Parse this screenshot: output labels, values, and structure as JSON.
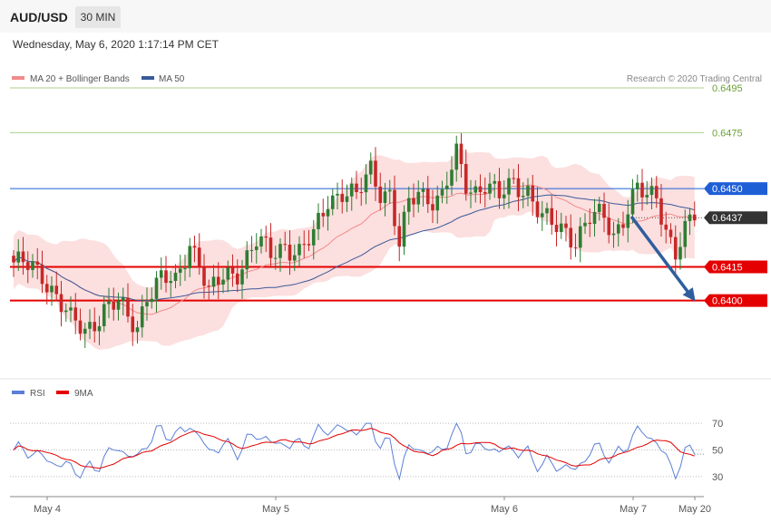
{
  "header": {
    "symbol": "AUD/USD",
    "timeframe": "30 MIN",
    "datetime": "Wednesday, May 6, 2020 1:17:14 PM CET"
  },
  "colors": {
    "bull": "#2e7d32",
    "bear": "#c62828",
    "band_fill": "#fbd4d4",
    "ma20": "#f28a8a",
    "ma50": "#3a5a9a",
    "support": "#e40000",
    "resistance_blue": "#1f5fd6",
    "target_green": "#a9d18e",
    "current_label": "#333333",
    "rsi": "#5b7fd6",
    "rsi_ma": "#e40000",
    "arrow": "#2f5e9e"
  },
  "chart_data": [
    {
      "type": "candlestick",
      "legend": [
        {
          "label": "MA 20 + Bollinger Bands",
          "color": "#f28a8a"
        },
        {
          "label": "MA 50",
          "color": "#3a5a9a"
        }
      ],
      "credit": "Research © 2020 Trading Central",
      "ylim": [
        0.6365,
        0.651
      ],
      "levels": [
        {
          "value": 0.6495,
          "label": "0.6495",
          "kind": "target"
        },
        {
          "value": 0.6475,
          "label": "0.6475",
          "kind": "target"
        },
        {
          "value": 0.645,
          "label": "0.6450",
          "kind": "resistance"
        },
        {
          "value": 0.6437,
          "label": "0.6437",
          "kind": "current"
        },
        {
          "value": 0.6415,
          "label": "0.6415",
          "kind": "support"
        },
        {
          "value": 0.64,
          "label": "0.6400",
          "kind": "support"
        }
      ],
      "x_ticks": [
        "May 4",
        "May 5",
        "May 6",
        "May 7",
        "May 20"
      ],
      "forecast": {
        "from": 0.6437,
        "to": 0.64
      }
    },
    {
      "type": "line",
      "legend": [
        {
          "label": "RSI",
          "color": "#5b7fd6"
        },
        {
          "label": "9MA",
          "color": "#e40000"
        }
      ],
      "ylim": [
        15,
        85
      ],
      "y_ticks": [
        "70",
        "50",
        "30"
      ]
    }
  ]
}
